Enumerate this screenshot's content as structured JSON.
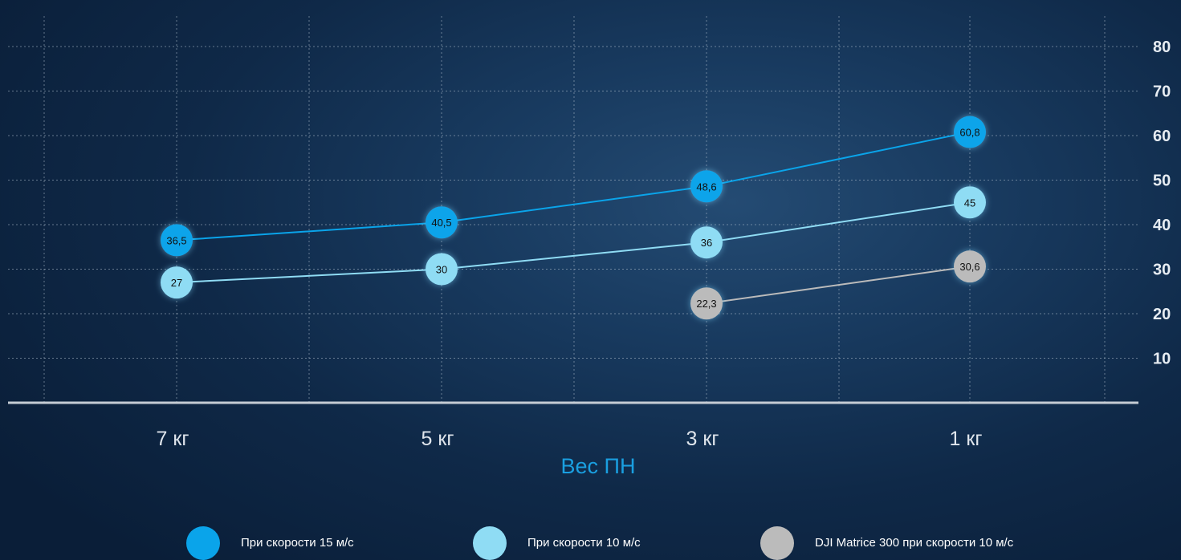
{
  "chart_data": {
    "type": "line",
    "categories": [
      "7 кг",
      "5 кг",
      "3 кг",
      "1 кг"
    ],
    "xlabel": "Вес ПН",
    "ylabel": "",
    "ylim": [
      0,
      80
    ],
    "yticks": [
      10,
      20,
      30,
      40,
      50,
      60,
      70,
      80
    ],
    "y_axis_side": "right",
    "grid": true,
    "legend_position": "bottom",
    "series": [
      {
        "name": "При скорости 15 м/с",
        "color": "#0aa4ea",
        "values": [
          36.5,
          40.5,
          48.6,
          60.8
        ],
        "labels": [
          "36,5",
          "40,5",
          "48,6",
          "60,8"
        ]
      },
      {
        "name": "При скорости 10 м/с",
        "color": "#8fdcf4",
        "values": [
          27,
          30,
          36,
          45
        ],
        "labels": [
          "27",
          "30",
          "36",
          "45"
        ]
      },
      {
        "name": "DJI Matrice 300 при скорости 10 м/с",
        "color": "#bbbbbb",
        "values": [
          null,
          null,
          22.3,
          30.6
        ],
        "labels": [
          "",
          "",
          "22,3",
          "30,6"
        ]
      }
    ]
  },
  "colors": {
    "axis_label": "#1a9fe0",
    "tick_label": "#e6ecf2",
    "grid": "#aebdcc",
    "baseline": "#c5ccd4",
    "point_text": "#111111"
  }
}
